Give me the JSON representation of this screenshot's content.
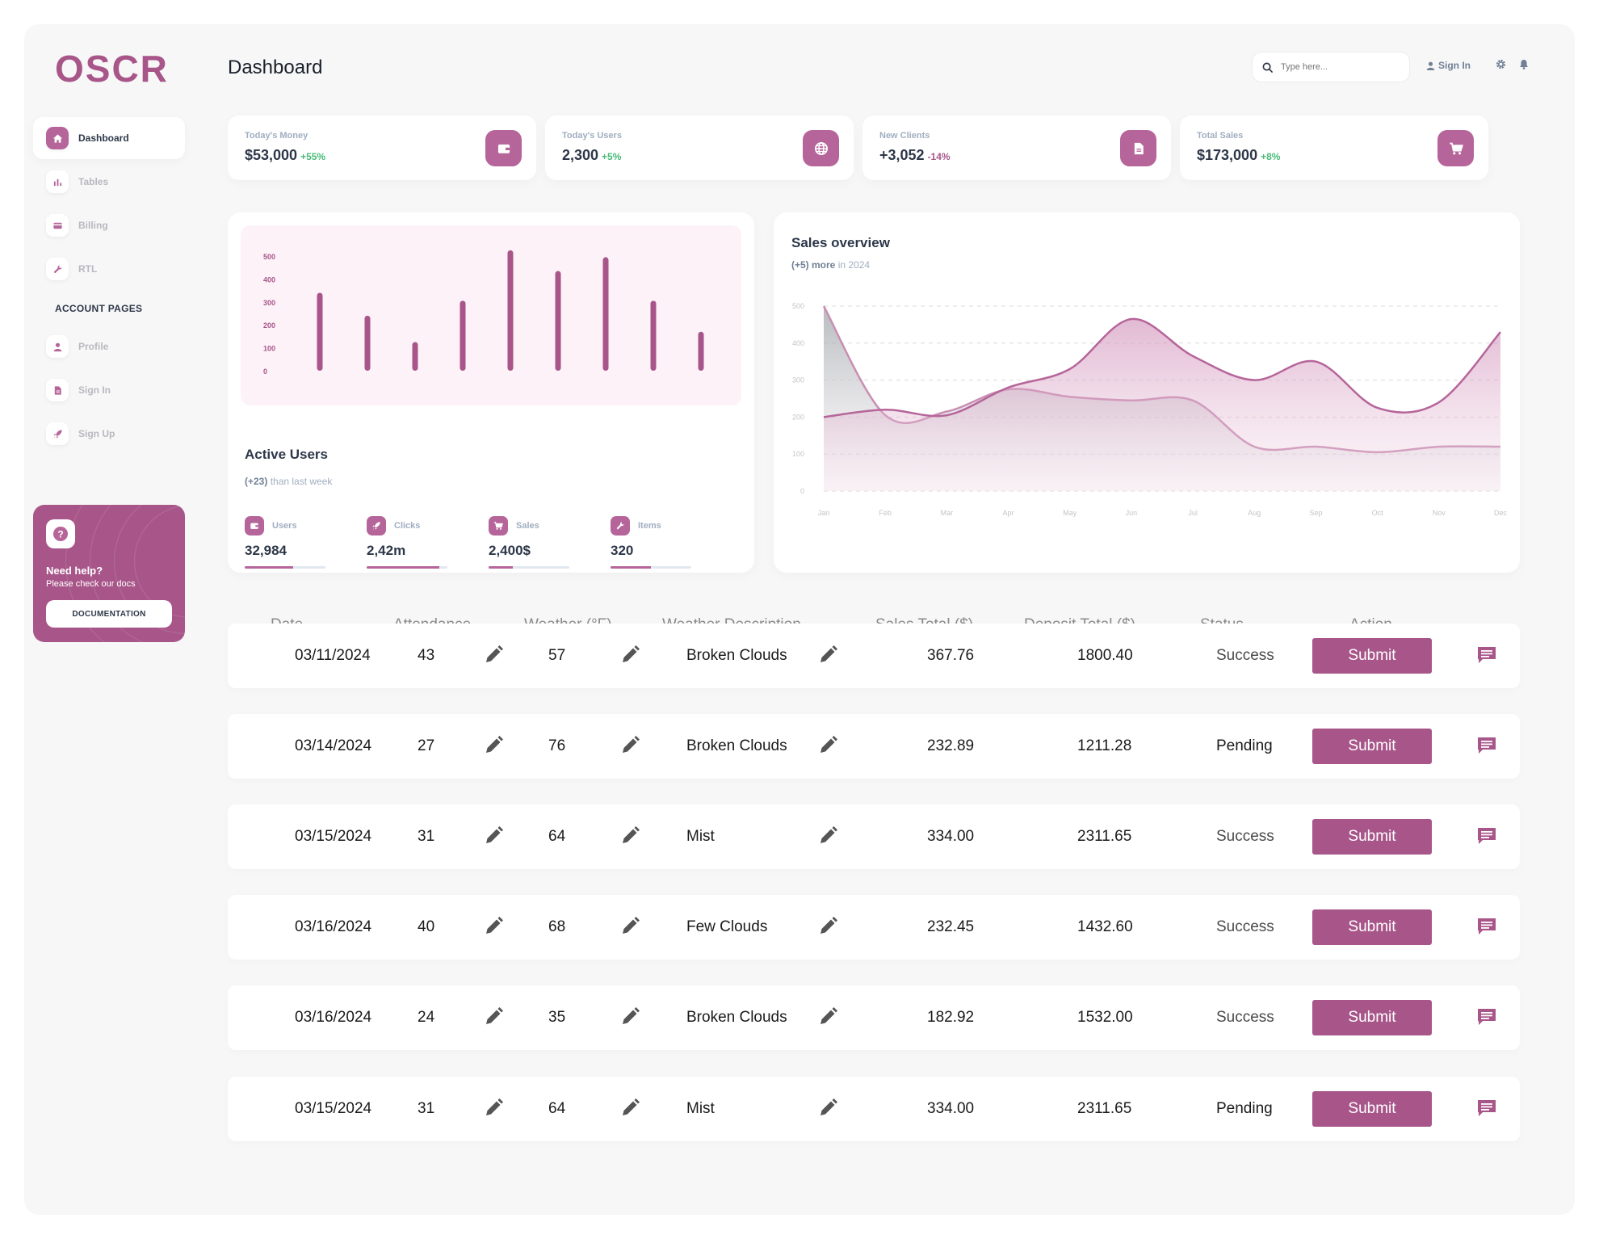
{
  "brand": "OSCR",
  "sidebar": {
    "items": [
      {
        "label": "Dashboard",
        "icon": "home-icon",
        "active": true
      },
      {
        "label": "Tables",
        "icon": "bar-chart-icon"
      },
      {
        "label": "Billing",
        "icon": "credit-card-icon"
      },
      {
        "label": "RTL",
        "icon": "wrench-icon"
      }
    ],
    "section_label": "ACCOUNT PAGES",
    "account_items": [
      {
        "label": "Profile",
        "icon": "person-icon"
      },
      {
        "label": "Sign In",
        "icon": "document-icon"
      },
      {
        "label": "Sign Up",
        "icon": "rocket-icon"
      }
    ],
    "help": {
      "title": "Need help?",
      "subtitle": "Please check our docs",
      "button": "DOCUMENTATION"
    }
  },
  "header": {
    "title": "Dashboard",
    "search_placeholder": "Type here...",
    "sign_in": "Sign In"
  },
  "stats": [
    {
      "label": "Today's Money",
      "value": "$53,000",
      "change": "+55%",
      "positive": true,
      "icon": "wallet-icon"
    },
    {
      "label": "Today's Users",
      "value": "2,300",
      "change": "+5%",
      "positive": true,
      "icon": "globe-icon"
    },
    {
      "label": "New Clients",
      "value": "+3,052",
      "change": "-14%",
      "positive": false,
      "icon": "document-icon"
    },
    {
      "label": "Total Sales",
      "value": "$173,000",
      "change": "+8%",
      "positive": true,
      "icon": "cart-icon"
    }
  ],
  "active_users": {
    "title": "Active Users",
    "subtitle_bold": "(+23)",
    "subtitle": " than last week",
    "metrics": [
      {
        "label": "Users",
        "value": "32,984",
        "progress": 0.6,
        "icon": "wallet-icon"
      },
      {
        "label": "Clicks",
        "value": "2,42m",
        "progress": 0.9,
        "icon": "rocket-icon"
      },
      {
        "label": "Sales",
        "value": "2,400$",
        "progress": 0.3,
        "icon": "cart-icon"
      },
      {
        "label": "Items",
        "value": "320",
        "progress": 0.5,
        "icon": "wrench-icon"
      }
    ]
  },
  "sales_overview": {
    "title": "Sales overview",
    "subtitle_bold": "(+5) more",
    "subtitle": " in 2024"
  },
  "chart_data": [
    {
      "type": "bar",
      "y_ticks": [
        "500",
        "400",
        "300",
        "200",
        "100",
        "0"
      ],
      "ylim": [
        0,
        500
      ],
      "values": [
        340,
        240,
        125,
        305,
        525,
        435,
        495,
        305,
        170
      ],
      "bar_color": "#a8568a",
      "grid": false
    },
    {
      "type": "area",
      "title": "Sales overview",
      "categories": [
        "Jan",
        "Feb",
        "Mar",
        "Apr",
        "May",
        "Jun",
        "Jul",
        "Aug",
        "Sep",
        "Oct",
        "Nov",
        "Dec"
      ],
      "y_ticks": [
        "500",
        "400",
        "300",
        "200",
        "100",
        "0"
      ],
      "ylim": [
        0,
        500
      ],
      "grid": true,
      "series": [
        {
          "values": [
            200,
            220,
            205,
            280,
            330,
            465,
            365,
            300,
            350,
            225,
            240,
            430
          ],
          "color": "#b6659a"
        },
        {
          "values": [
            500,
            205,
            215,
            275,
            255,
            245,
            245,
            120,
            120,
            105,
            120,
            120
          ],
          "color": "#9aa0a6"
        }
      ]
    }
  ],
  "table": {
    "columns": [
      "Date",
      "Attendance",
      "Weather (°F)",
      "Weather Description",
      "Sales Total ($)",
      "Deposit Total ($)",
      "Status",
      "Action"
    ],
    "action_label": "Submit",
    "rows": [
      {
        "date": "03/11/2024",
        "attendance": "43",
        "weather": "57",
        "description": "Broken Clouds",
        "sales": "367.76",
        "deposit": "1800.40",
        "status": "Success"
      },
      {
        "date": "03/14/2024",
        "attendance": "27",
        "weather": "76",
        "description": "Broken Clouds",
        "sales": "232.89",
        "deposit": "1211.28",
        "status": "Pending"
      },
      {
        "date": "03/15/2024",
        "attendance": "31",
        "weather": "64",
        "description": "Mist",
        "sales": "334.00",
        "deposit": "2311.65",
        "status": "Success"
      },
      {
        "date": "03/16/2024",
        "attendance": "40",
        "weather": "68",
        "description": "Few Clouds",
        "sales": "232.45",
        "deposit": "1432.60",
        "status": "Success"
      },
      {
        "date": "03/16/2024",
        "attendance": "24",
        "weather": "35",
        "description": "Broken Clouds",
        "sales": "182.92",
        "deposit": "1532.00",
        "status": "Success"
      },
      {
        "date": "03/15/2024",
        "attendance": "31",
        "weather": "64",
        "description": "Mist",
        "sales": "334.00",
        "deposit": "2311.65",
        "status": "Pending"
      }
    ]
  },
  "colors": {
    "accent": "#b6659a",
    "accent_dark": "#a8568a",
    "positive": "#48bb78",
    "negative": "#a8568a"
  }
}
